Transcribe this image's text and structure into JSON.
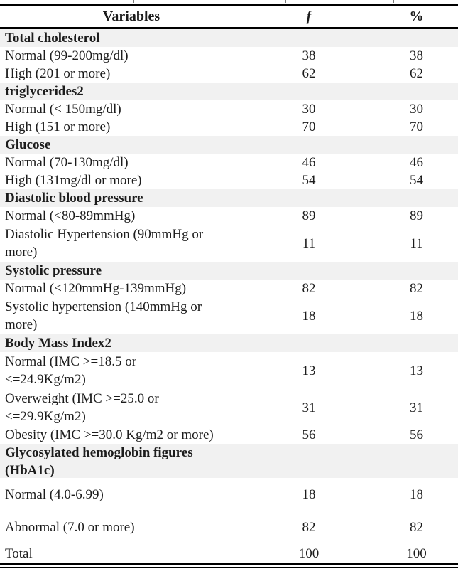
{
  "table": {
    "columns": [
      {
        "label": "Variables"
      },
      {
        "label": "f"
      },
      {
        "label": "%"
      }
    ],
    "rows": [
      {
        "type": "section",
        "label": "Total cholesterol"
      },
      {
        "type": "data",
        "label": "Normal (99-200mg/dl)",
        "f": "38",
        "pct": "38"
      },
      {
        "type": "data",
        "label": "High (201 or more)",
        "f": "62",
        "pct": "62"
      },
      {
        "type": "section",
        "label": "triglycerides2"
      },
      {
        "type": "data",
        "label": "Normal (< 150mg/dl)",
        "f": "30",
        "pct": "30"
      },
      {
        "type": "data",
        "label": "High (151 or more)",
        "f": "70",
        "pct": "70"
      },
      {
        "type": "section",
        "label": "Glucose"
      },
      {
        "type": "data",
        "label": "Normal (70-130mg/dl)",
        "f": "46",
        "pct": "46"
      },
      {
        "type": "data",
        "label": "High (131mg/dl or more)",
        "f": "54",
        "pct": "54"
      },
      {
        "type": "section",
        "label": "Diastolic blood pressure"
      },
      {
        "type": "data",
        "label": "Normal (<80-89mmHg)",
        "f": "89",
        "pct": "89"
      },
      {
        "type": "data",
        "label": "Diastolic Hypertension (90mmHg or\nmore)",
        "f": "11",
        "pct": "11"
      },
      {
        "type": "section",
        "label": "Systolic pressure"
      },
      {
        "type": "data",
        "label": "Normal (<120mmHg-139mmHg)",
        "f": "82",
        "pct": "82"
      },
      {
        "type": "data",
        "label": "Systolic hypertension (140mmHg or\nmore)",
        "f": "18",
        "pct": "18"
      },
      {
        "type": "section",
        "label": "Body Mass Index2"
      },
      {
        "type": "data",
        "label": "Normal (IMC >=18.5 or\n<=24.9Kg/m2)",
        "f": "13",
        "pct": "13"
      },
      {
        "type": "data",
        "label": "Overweight (IMC >=25.0 or\n<=29.9Kg/m2)",
        "f": "31",
        "pct": "31"
      },
      {
        "type": "data",
        "label": "Obesity (IMC >=30.0 Kg/m2 or more)",
        "f": "56",
        "pct": "56"
      },
      {
        "type": "section",
        "label": "Glycosylated hemoglobin figures\n(HbA1c)"
      },
      {
        "type": "data",
        "label": "Normal (4.0-6.99)",
        "f": "18",
        "pct": "18",
        "spacing": "tall"
      },
      {
        "type": "data",
        "label": "Abnormal (7.0 or more)",
        "f": "82",
        "pct": "82",
        "spacing": "tall"
      },
      {
        "type": "data",
        "label": "Total",
        "f": "100",
        "pct": "100",
        "spacing": "total"
      }
    ],
    "section_band_color": "#f1f1f1",
    "rule_color": "#000000",
    "text_color": "#1c1c1c"
  }
}
